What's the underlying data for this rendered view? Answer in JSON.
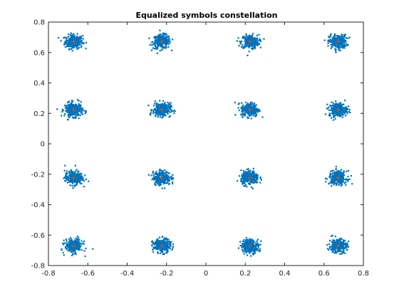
{
  "chart_data": {
    "type": "scatter",
    "title": "Equalized symbols constellation",
    "xlabel": "",
    "ylabel": "",
    "xlim": [
      -0.8,
      0.8
    ],
    "ylim": [
      -0.8,
      0.8
    ],
    "xticks": [
      -0.8,
      -0.6,
      -0.4,
      -0.2,
      0,
      0.2,
      0.4,
      0.6,
      0.8
    ],
    "yticks": [
      -0.8,
      -0.6,
      -0.4,
      -0.2,
      0,
      0.2,
      0.4,
      0.6,
      0.8
    ],
    "xtick_labels": [
      "-0.8",
      "-0.6",
      "-0.4",
      "-0.2",
      "0",
      "0.2",
      "0.4",
      "0.6",
      "0.8"
    ],
    "ytick_labels": [
      "-0.8",
      "-0.6",
      "-0.4",
      "-0.2",
      "0",
      "0.2",
      "0.4",
      "0.6",
      "0.8"
    ],
    "grid": false,
    "box": true,
    "series": [
      {
        "marker": "point-cloud",
        "color": "#0072bd",
        "description_of_spread": 0.03,
        "cluster_centers": [
          [
            -0.671,
            0.671
          ],
          [
            -0.224,
            0.671
          ],
          [
            0.224,
            0.671
          ],
          [
            0.671,
            0.671
          ],
          [
            -0.671,
            0.224
          ],
          [
            -0.224,
            0.224
          ],
          [
            0.224,
            0.224
          ],
          [
            0.671,
            0.224
          ],
          [
            -0.671,
            -0.224
          ],
          [
            -0.224,
            -0.224
          ],
          [
            0.224,
            -0.224
          ],
          [
            0.671,
            -0.224
          ],
          [
            -0.671,
            -0.671
          ],
          [
            -0.224,
            -0.671
          ],
          [
            0.224,
            -0.671
          ],
          [
            0.671,
            -0.671
          ]
        ]
      },
      {
        "marker": "+",
        "color": "#d95319",
        "points": [
          [
            -0.671,
            0.671
          ],
          [
            -0.224,
            0.671
          ],
          [
            0.224,
            0.671
          ],
          [
            0.671,
            0.671
          ],
          [
            -0.671,
            0.224
          ],
          [
            -0.224,
            0.224
          ],
          [
            0.224,
            0.224
          ],
          [
            0.671,
            0.224
          ],
          [
            -0.671,
            -0.224
          ],
          [
            -0.224,
            -0.224
          ],
          [
            0.224,
            -0.224
          ],
          [
            0.671,
            -0.224
          ],
          [
            -0.671,
            -0.671
          ],
          [
            -0.224,
            -0.671
          ],
          [
            0.224,
            -0.671
          ],
          [
            0.671,
            -0.671
          ]
        ]
      }
    ]
  }
}
